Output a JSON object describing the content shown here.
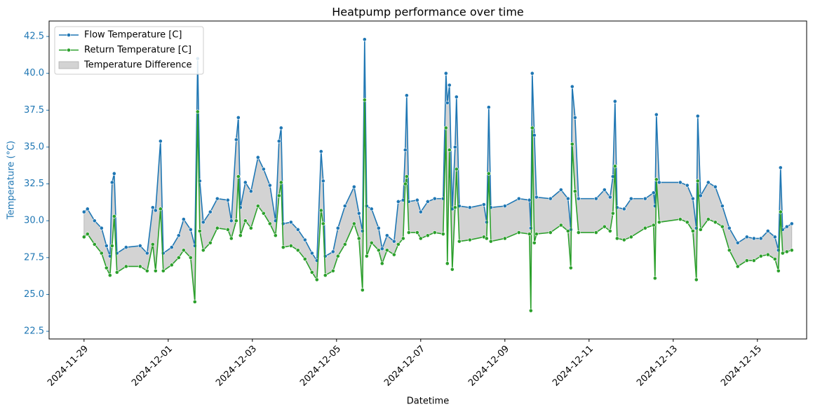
{
  "chart_data": {
    "type": "line",
    "title": "Heatpump performance over time",
    "xlabel": "Datetime",
    "ylabel": "Temperature (°C)",
    "ylabel_color": "#1f77b4",
    "x": [
      0,
      0.083,
      0.25,
      0.417,
      0.533,
      0.617,
      0.667,
      0.717,
      0.783,
      1,
      1.333,
      1.5,
      1.633,
      1.7,
      1.817,
      1.883,
      2.083,
      2.25,
      2.367,
      2.533,
      2.633,
      2.7,
      2.75,
      2.833,
      3,
      3.167,
      3.417,
      3.5,
      3.617,
      3.667,
      3.717,
      3.833,
      3.967,
      4.133,
      4.267,
      4.417,
      4.55,
      4.633,
      4.683,
      4.733,
      4.917,
      5.083,
      5.25,
      5.417,
      5.533,
      5.633,
      5.683,
      5.733,
      5.917,
      6.033,
      6.2,
      6.417,
      6.533,
      6.617,
      6.667,
      6.717,
      6.833,
      7,
      7.083,
      7.2,
      7.367,
      7.467,
      7.583,
      7.633,
      7.667,
      7.717,
      7.917,
      8,
      8.167,
      8.333,
      8.533,
      8.6,
      8.633,
      8.683,
      8.75,
      8.817,
      8.85,
      8.917,
      9.167,
      9.5,
      9.567,
      9.617,
      9.667,
      10,
      10.333,
      10.583,
      10.617,
      10.65,
      10.7,
      10.75,
      11.083,
      11.333,
      11.5,
      11.567,
      11.6,
      11.667,
      11.75,
      12.167,
      12.367,
      12.5,
      12.567,
      12.617,
      12.667,
      12.833,
      13,
      13.333,
      13.533,
      13.567,
      13.6,
      13.667,
      14.167,
      14.333,
      14.467,
      14.55,
      14.583,
      14.65,
      14.833,
      15,
      15.167,
      15.333,
      15.533,
      15.75,
      15.917,
      16.083,
      16.25,
      16.417,
      16.5,
      16.55,
      16.6,
      16.7,
      16.817
    ],
    "series": [
      {
        "name": "Flow Temperature [C]",
        "color": "#1f77b4",
        "values": [
          30.6,
          30.8,
          30.0,
          29.5,
          28.3,
          27.6,
          32.6,
          33.2,
          27.8,
          28.2,
          28.3,
          27.8,
          30.9,
          30.7,
          35.4,
          27.8,
          28.2,
          29.0,
          30.1,
          29.4,
          28.3,
          41.0,
          32.7,
          29.9,
          30.6,
          31.5,
          31.4,
          30.0,
          35.5,
          37.0,
          30.9,
          32.6,
          32.0,
          34.3,
          33.5,
          32.4,
          30.0,
          35.4,
          36.3,
          29.8,
          29.9,
          29.4,
          28.7,
          27.8,
          27.3,
          34.7,
          32.7,
          27.6,
          27.9,
          29.5,
          31.0,
          32.3,
          30.5,
          29.3,
          42.3,
          31.0,
          30.8,
          29.5,
          28.1,
          29.0,
          28.6,
          31.3,
          31.4,
          34.8,
          38.5,
          31.3,
          31.4,
          30.6,
          31.3,
          31.5,
          31.5,
          40.0,
          38.0,
          39.2,
          30.8,
          35.0,
          38.4,
          31.0,
          30.9,
          31.1,
          29.9,
          37.7,
          30.9,
          31.0,
          31.5,
          31.4,
          29.5,
          40.0,
          35.8,
          31.6,
          31.5,
          32.1,
          31.5,
          29.4,
          39.1,
          37.0,
          31.5,
          31.5,
          32.1,
          31.6,
          33.0,
          38.1,
          30.9,
          30.8,
          31.5,
          31.5,
          31.9,
          31.0,
          37.2,
          32.6,
          32.6,
          32.4,
          31.5,
          29.5,
          37.1,
          31.7,
          32.6,
          32.3,
          31.0,
          29.5,
          28.5,
          28.9,
          28.8,
          28.8,
          29.3,
          28.9,
          28.0,
          33.6,
          29.4,
          29.6,
          29.8
        ]
      },
      {
        "name": "Return Temperature [C]",
        "color": "#2ca02c",
        "values": [
          28.9,
          29.1,
          28.4,
          27.8,
          26.8,
          26.3,
          28.3,
          30.3,
          26.5,
          26.9,
          26.9,
          26.6,
          28.4,
          26.6,
          30.8,
          26.6,
          27.0,
          27.5,
          28.0,
          27.5,
          24.5,
          37.4,
          29.3,
          28.0,
          28.5,
          29.5,
          29.4,
          28.8,
          30.0,
          33.0,
          29.0,
          30.0,
          29.5,
          31.0,
          30.5,
          29.8,
          29.0,
          31.7,
          32.6,
          28.2,
          28.3,
          28.0,
          27.4,
          26.5,
          26.0,
          30.7,
          29.8,
          26.3,
          26.6,
          27.6,
          28.4,
          29.8,
          28.8,
          25.3,
          38.2,
          27.6,
          28.5,
          28.0,
          27.1,
          28.0,
          27.7,
          28.4,
          28.8,
          32.5,
          33.0,
          29.2,
          29.2,
          28.8,
          29.0,
          29.2,
          29.1,
          36.3,
          27.1,
          34.8,
          26.7,
          30.9,
          33.5,
          28.6,
          28.7,
          28.9,
          28.8,
          33.2,
          28.6,
          28.8,
          29.2,
          29.1,
          23.9,
          36.3,
          28.5,
          29.1,
          29.2,
          29.7,
          29.3,
          26.8,
          35.2,
          32.0,
          29.2,
          29.2,
          29.6,
          29.3,
          30.5,
          33.7,
          28.8,
          28.7,
          28.9,
          29.5,
          29.7,
          26.1,
          32.8,
          29.9,
          30.1,
          29.9,
          29.3,
          26.0,
          32.7,
          29.4,
          30.1,
          29.9,
          29.6,
          28.0,
          26.9,
          27.3,
          27.3,
          27.6,
          27.7,
          27.4,
          26.6,
          30.6,
          27.8,
          27.9,
          28.0
        ]
      }
    ],
    "fill": {
      "name": "Temperature Difference",
      "color": "#d3d3d3"
    },
    "xlim": [
      -0.83,
      17.17
    ],
    "xticks": [
      {
        "value": 0,
        "label": "2024-11-29"
      },
      {
        "value": 2,
        "label": "2024-12-01"
      },
      {
        "value": 4,
        "label": "2024-12-03"
      },
      {
        "value": 6,
        "label": "2024-12-05"
      },
      {
        "value": 8,
        "label": "2024-12-07"
      },
      {
        "value": 10,
        "label": "2024-12-09"
      },
      {
        "value": 12,
        "label": "2024-12-11"
      },
      {
        "value": 14,
        "label": "2024-12-13"
      },
      {
        "value": 16,
        "label": "2024-12-15"
      }
    ],
    "ylim": [
      21.98,
      43.55
    ],
    "yticks": [
      22.5,
      {
        "value": 25,
        "label": "25.0"
      },
      27.5,
      {
        "value": 30,
        "label": "30.0"
      },
      32.5,
      {
        "value": 35,
        "label": "35.0"
      },
      37.5,
      {
        "value": 40,
        "label": "40.0"
      },
      42.5
    ],
    "legend": "upper left"
  }
}
